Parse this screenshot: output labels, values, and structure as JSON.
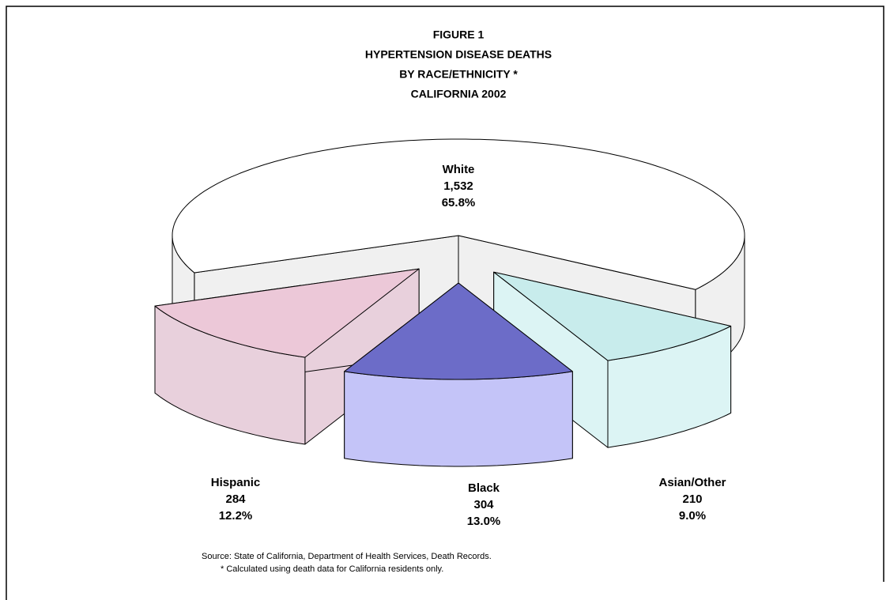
{
  "chart_data": {
    "type": "pie3d",
    "title": [
      "FIGURE 1",
      "HYPERTENSION DISEASE DEATHS",
      "BY RACE/ETHNICITY *",
      "CALIFORNIA 2002"
    ],
    "categories": [
      "White",
      "Asian/Other",
      "Black",
      "Hispanic"
    ],
    "values": [
      1532,
      210,
      304,
      284
    ],
    "value_labels": [
      "1,532",
      "210",
      "304",
      "284"
    ],
    "percentages": [
      {
        "value": 65.8,
        "label": "65.8%"
      },
      {
        "value": 9.0,
        "label": "9.0%"
      },
      {
        "value": 13.0,
        "label": "13.0%"
      },
      {
        "value": 12.2,
        "label": "12.2%"
      }
    ],
    "colors": [
      "#ffffff",
      "#c8ecec",
      "#6c6cc8",
      "#ecc8d8"
    ],
    "side_colors": [
      "#f0f0f0",
      "#dcf4f4",
      "#c4c4f8",
      "#e8d0dc"
    ],
    "notes": [
      "Source:  State of California, Department of Health Services, Death Records.",
      "*  Calculated using death data for California residents only."
    ]
  }
}
